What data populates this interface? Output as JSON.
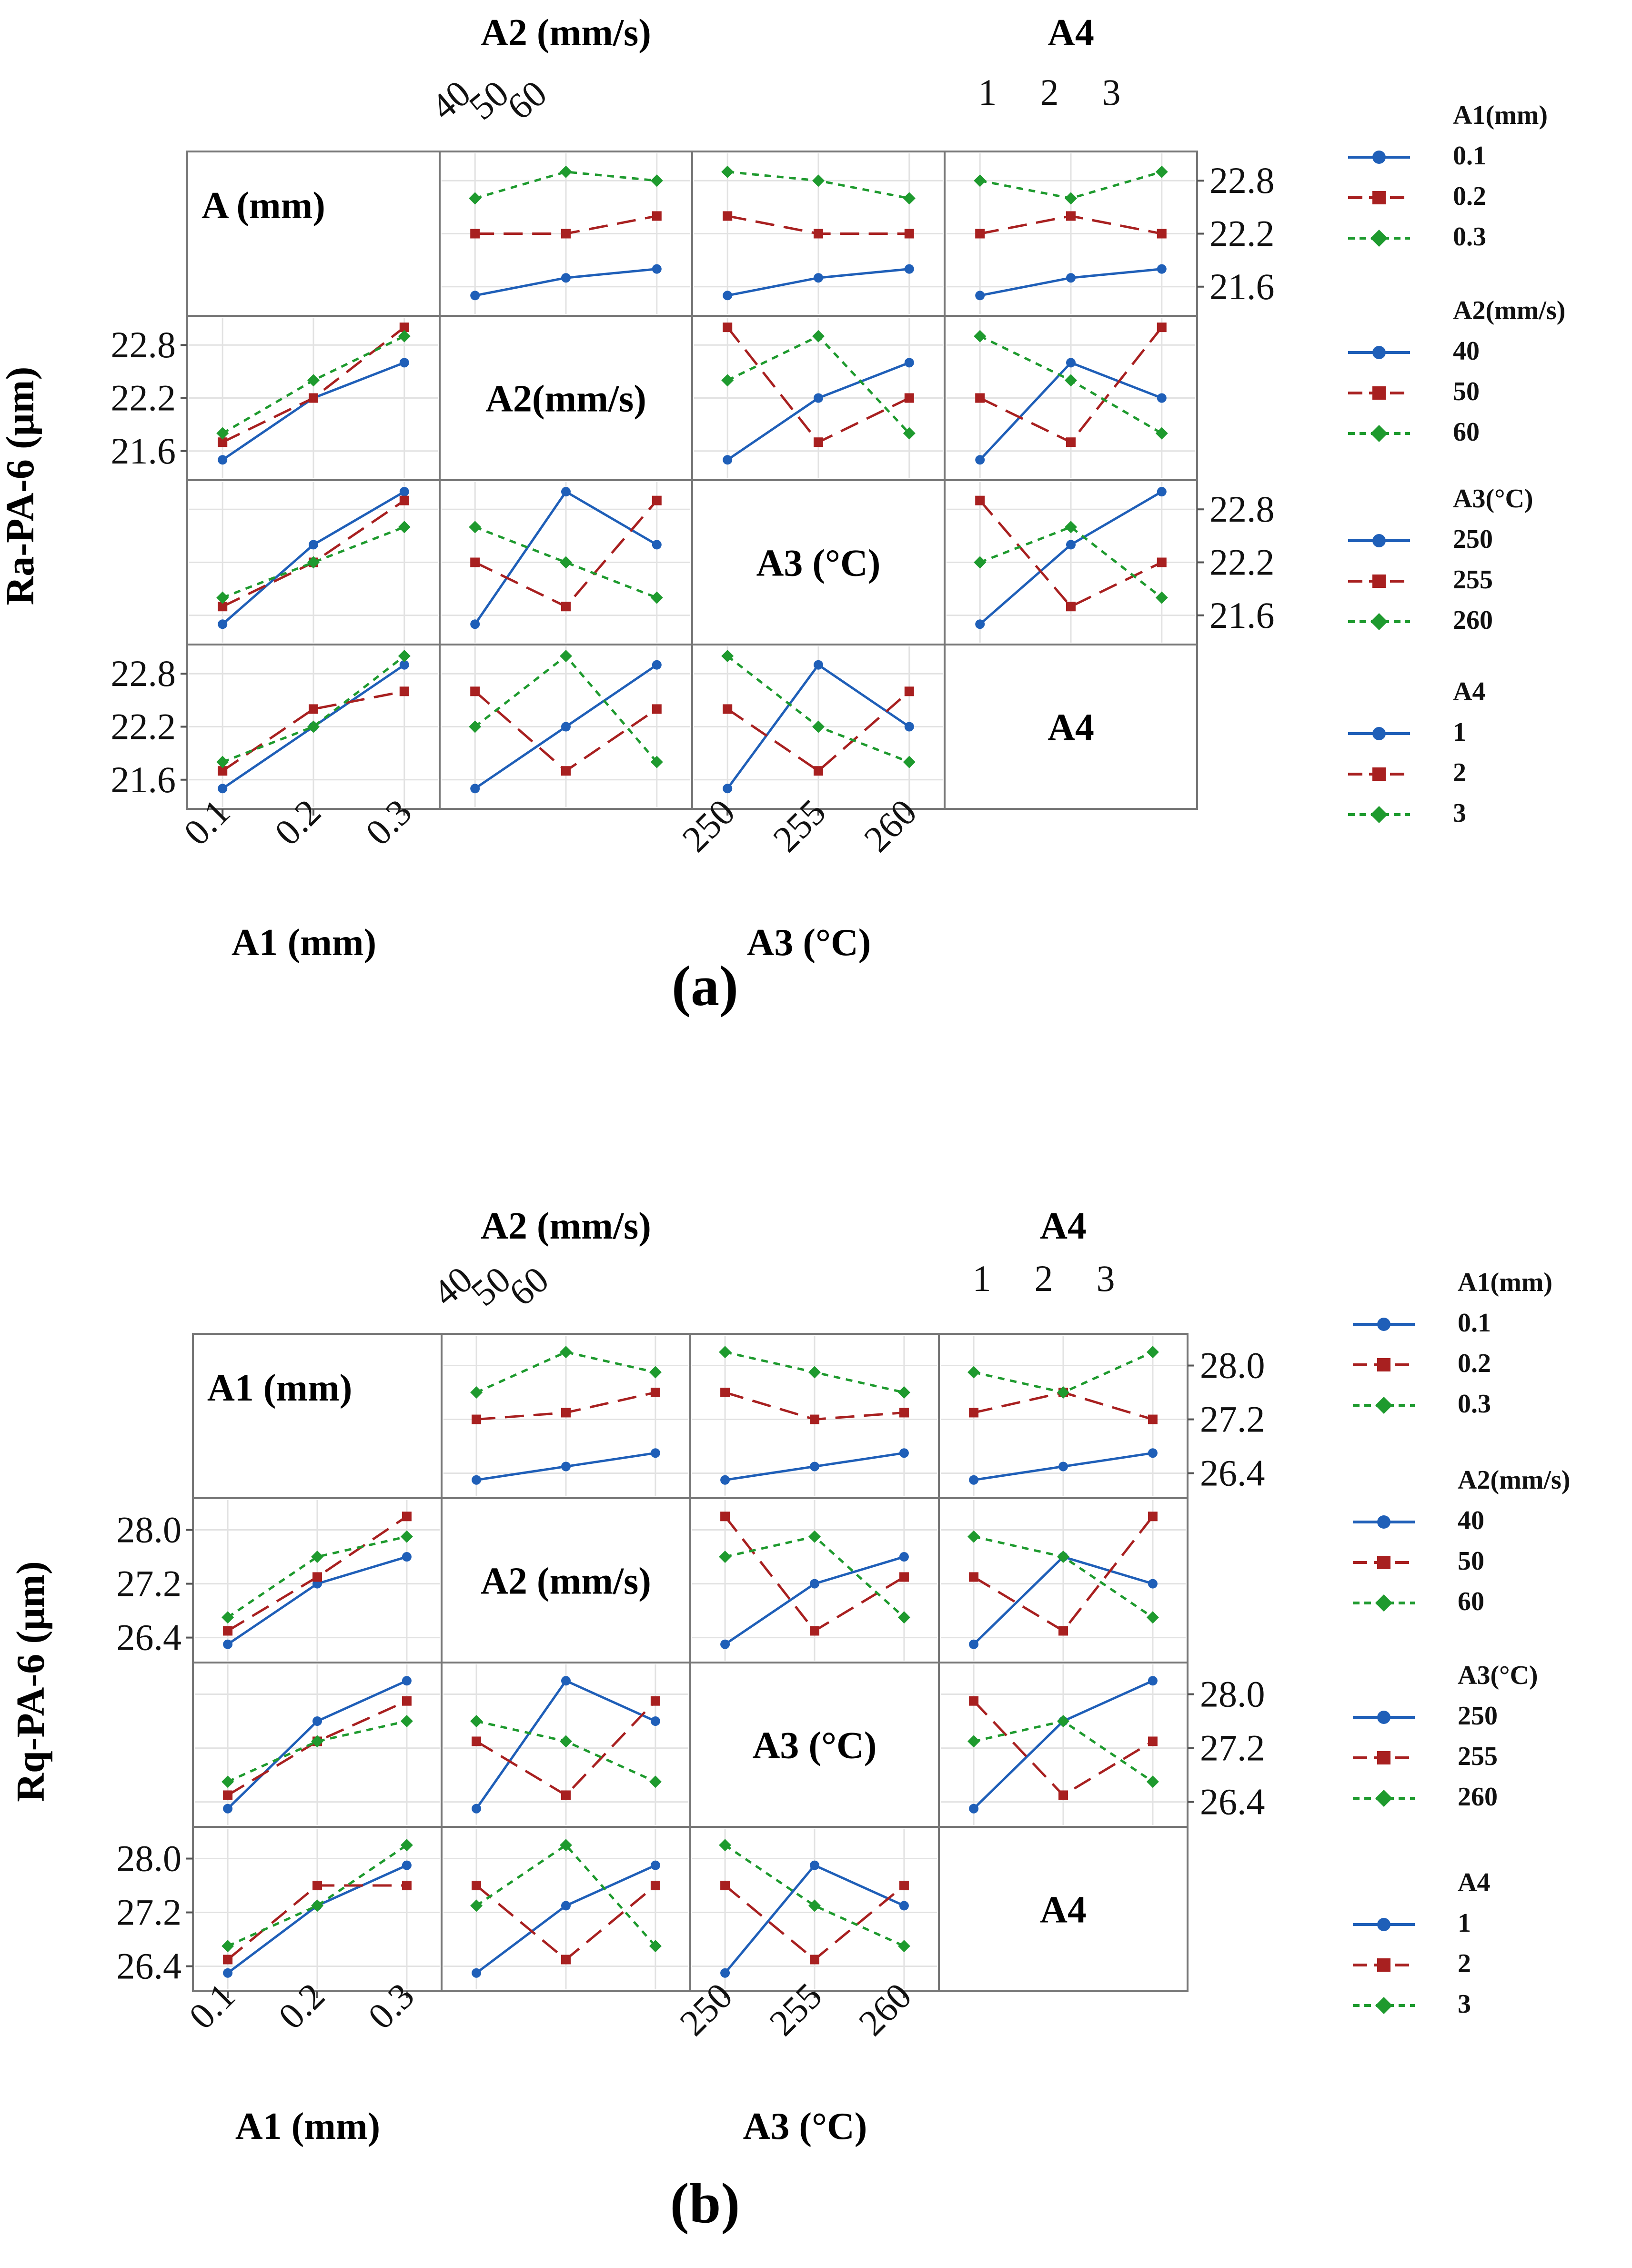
{
  "chart_data": [
    {
      "type": "line",
      "title": "(a)",
      "ylabel": "Ra-PA-6 (μm)",
      "ylim": [
        21.4,
        23.0
      ],
      "y_ticks": [
        "21.6",
        "22.2",
        "22.8"
      ],
      "colors": {
        "level1": "#1f5fb8",
        "level2": "#a82020",
        "level3": "#1e9a2e"
      },
      "factors": [
        {
          "key": "A1",
          "levels": [
            "0.1",
            "0.2",
            "0.3"
          ]
        },
        {
          "key": "A2",
          "levels": [
            "40",
            "50",
            "60"
          ]
        },
        {
          "key": "A3",
          "levels": [
            "250",
            "255",
            "260"
          ]
        },
        {
          "key": "A4",
          "levels": [
            "1",
            "2",
            "3"
          ]
        }
      ],
      "diagonal_labels": [
        "A (mm)",
        "A2(mm/s)",
        "A3 (°C)",
        "A4"
      ],
      "top_axis_labels": {
        "A2": "A2 (mm/s)",
        "A4": "A4"
      },
      "bottom_axis_labels": {
        "A1": "A1 (mm)",
        "A3": "A3 (°C)"
      },
      "top_tick_labels": {
        "A2": [
          "40",
          "50",
          "60"
        ],
        "A4": [
          "1",
          "2",
          "3"
        ]
      },
      "bottom_tick_labels": {
        "A1": [
          "0.1",
          "0.2",
          "0.3"
        ],
        "A3": [
          "250",
          "255",
          "260"
        ]
      },
      "legends": [
        {
          "title": "A1(mm)",
          "levels": [
            "0.1",
            "0.2",
            "0.3"
          ]
        },
        {
          "title": "A2(mm/s)",
          "levels": [
            "40",
            "50",
            "60"
          ]
        },
        {
          "title": "A3(°C)",
          "levels": [
            "250",
            "255",
            "260"
          ]
        },
        {
          "title": "A4",
          "levels": [
            "1",
            "2",
            "3"
          ]
        }
      ],
      "panels": [
        {
          "row": 0,
          "col": 1,
          "series": [
            [
              21.5,
              21.7,
              21.8
            ],
            [
              22.2,
              22.2,
              22.4
            ],
            [
              22.6,
              22.9,
              22.8
            ]
          ]
        },
        {
          "row": 0,
          "col": 2,
          "series": [
            [
              21.5,
              21.7,
              21.8
            ],
            [
              22.4,
              22.2,
              22.2
            ],
            [
              22.9,
              22.8,
              22.6
            ]
          ]
        },
        {
          "row": 0,
          "col": 3,
          "series": [
            [
              21.5,
              21.7,
              21.8
            ],
            [
              22.2,
              22.4,
              22.2
            ],
            [
              22.8,
              22.6,
              22.9
            ]
          ]
        },
        {
          "row": 1,
          "col": 0,
          "series": [
            [
              21.5,
              22.2,
              22.6
            ],
            [
              21.7,
              22.2,
              23.0
            ],
            [
              21.8,
              22.4,
              22.9
            ]
          ]
        },
        {
          "row": 1,
          "col": 2,
          "series": [
            [
              21.5,
              22.2,
              22.6
            ],
            [
              23.0,
              21.7,
              22.2
            ],
            [
              22.4,
              22.9,
              21.8
            ]
          ]
        },
        {
          "row": 1,
          "col": 3,
          "series": [
            [
              21.5,
              22.6,
              22.2
            ],
            [
              22.2,
              21.7,
              23.0
            ],
            [
              22.9,
              22.4,
              21.8
            ]
          ]
        },
        {
          "row": 2,
          "col": 0,
          "series": [
            [
              21.5,
              22.4,
              23.0
            ],
            [
              21.7,
              22.2,
              22.9
            ],
            [
              21.8,
              22.2,
              22.6
            ]
          ]
        },
        {
          "row": 2,
          "col": 1,
          "series": [
            [
              21.5,
              23.0,
              22.4
            ],
            [
              22.2,
              21.7,
              22.9
            ],
            [
              22.6,
              22.2,
              21.8
            ]
          ]
        },
        {
          "row": 2,
          "col": 3,
          "series": [
            [
              21.5,
              22.4,
              23.0
            ],
            [
              22.9,
              21.7,
              22.2
            ],
            [
              22.2,
              22.6,
              21.8
            ]
          ]
        },
        {
          "row": 3,
          "col": 0,
          "series": [
            [
              21.5,
              22.2,
              22.9
            ],
            [
              21.7,
              22.4,
              22.6
            ],
            [
              21.8,
              22.2,
              23.0
            ]
          ]
        },
        {
          "row": 3,
          "col": 1,
          "series": [
            [
              21.5,
              22.2,
              22.9
            ],
            [
              22.6,
              21.7,
              22.4
            ],
            [
              22.2,
              23.0,
              21.8
            ]
          ]
        },
        {
          "row": 3,
          "col": 2,
          "series": [
            [
              21.5,
              22.9,
              22.2
            ],
            [
              22.4,
              21.7,
              22.6
            ],
            [
              23.0,
              22.2,
              21.8
            ]
          ]
        }
      ]
    },
    {
      "type": "line",
      "title": "(b)",
      "ylabel": "Rq-PA-6 (μm)",
      "ylim": [
        26.2,
        28.3
      ],
      "y_ticks": [
        "26.4",
        "27.2",
        "28.0"
      ],
      "colors": {
        "level1": "#1f5fb8",
        "level2": "#a82020",
        "level3": "#1e9a2e"
      },
      "factors": [
        {
          "key": "A1",
          "levels": [
            "0.1",
            "0.2",
            "0.3"
          ]
        },
        {
          "key": "A2",
          "levels": [
            "40",
            "50",
            "60"
          ]
        },
        {
          "key": "A3",
          "levels": [
            "250",
            "255",
            "260"
          ]
        },
        {
          "key": "A4",
          "levels": [
            "1",
            "2",
            "3"
          ]
        }
      ],
      "diagonal_labels": [
        "A1 (mm)",
        "A2 (mm/s)",
        "A3 (°C)",
        "A4"
      ],
      "top_axis_labels": {
        "A2": "A2 (mm/s)",
        "A4": "A4"
      },
      "bottom_axis_labels": {
        "A1": "A1 (mm)",
        "A3": "A3 (°C)"
      },
      "top_tick_labels": {
        "A2": [
          "40",
          "50",
          "60"
        ],
        "A4": [
          "1",
          "2",
          "3"
        ]
      },
      "bottom_tick_labels": {
        "A1": [
          "0.1",
          "0.2",
          "0.3"
        ],
        "A3": [
          "250",
          "255",
          "260"
        ]
      },
      "legends": [
        {
          "title": "A1(mm)",
          "levels": [
            "0.1",
            "0.2",
            "0.3"
          ]
        },
        {
          "title": "A2(mm/s)",
          "levels": [
            "40",
            "50",
            "60"
          ]
        },
        {
          "title": "A3(°C)",
          "levels": [
            "250",
            "255",
            "260"
          ]
        },
        {
          "title": "A4",
          "levels": [
            "1",
            "2",
            "3"
          ]
        }
      ],
      "panels": [
        {
          "row": 0,
          "col": 1,
          "series": [
            [
              26.3,
              26.5,
              26.7
            ],
            [
              27.2,
              27.3,
              27.6
            ],
            [
              27.6,
              28.2,
              27.9
            ]
          ]
        },
        {
          "row": 0,
          "col": 2,
          "series": [
            [
              26.3,
              26.5,
              26.7
            ],
            [
              27.6,
              27.2,
              27.3
            ],
            [
              28.2,
              27.9,
              27.6
            ]
          ]
        },
        {
          "row": 0,
          "col": 3,
          "series": [
            [
              26.3,
              26.5,
              26.7
            ],
            [
              27.3,
              27.6,
              27.2
            ],
            [
              27.9,
              27.6,
              28.2
            ]
          ]
        },
        {
          "row": 1,
          "col": 0,
          "series": [
            [
              26.3,
              27.2,
              27.6
            ],
            [
              26.5,
              27.3,
              28.2
            ],
            [
              26.7,
              27.6,
              27.9
            ]
          ]
        },
        {
          "row": 1,
          "col": 2,
          "series": [
            [
              26.3,
              27.2,
              27.6
            ],
            [
              28.2,
              26.5,
              27.3
            ],
            [
              27.6,
              27.9,
              26.7
            ]
          ]
        },
        {
          "row": 1,
          "col": 3,
          "series": [
            [
              26.3,
              27.6,
              27.2
            ],
            [
              27.3,
              26.5,
              28.2
            ],
            [
              27.9,
              27.6,
              26.7
            ]
          ]
        },
        {
          "row": 2,
          "col": 0,
          "series": [
            [
              26.3,
              27.6,
              28.2
            ],
            [
              26.5,
              27.3,
              27.9
            ],
            [
              26.7,
              27.3,
              27.6
            ]
          ]
        },
        {
          "row": 2,
          "col": 1,
          "series": [
            [
              26.3,
              28.2,
              27.6
            ],
            [
              27.3,
              26.5,
              27.9
            ],
            [
              27.6,
              27.3,
              26.7
            ]
          ]
        },
        {
          "row": 2,
          "col": 3,
          "series": [
            [
              26.3,
              27.6,
              28.2
            ],
            [
              27.9,
              26.5,
              27.3
            ],
            [
              27.3,
              27.6,
              26.7
            ]
          ]
        },
        {
          "row": 3,
          "col": 0,
          "series": [
            [
              26.3,
              27.3,
              27.9
            ],
            [
              26.5,
              27.6,
              27.6
            ],
            [
              26.7,
              27.3,
              28.2
            ]
          ]
        },
        {
          "row": 3,
          "col": 1,
          "series": [
            [
              26.3,
              27.3,
              27.9
            ],
            [
              27.6,
              26.5,
              27.6
            ],
            [
              27.3,
              28.2,
              26.7
            ]
          ]
        },
        {
          "row": 3,
          "col": 2,
          "series": [
            [
              26.3,
              27.9,
              27.3
            ],
            [
              27.6,
              26.5,
              27.6
            ],
            [
              28.2,
              27.3,
              26.7
            ]
          ]
        }
      ]
    }
  ]
}
